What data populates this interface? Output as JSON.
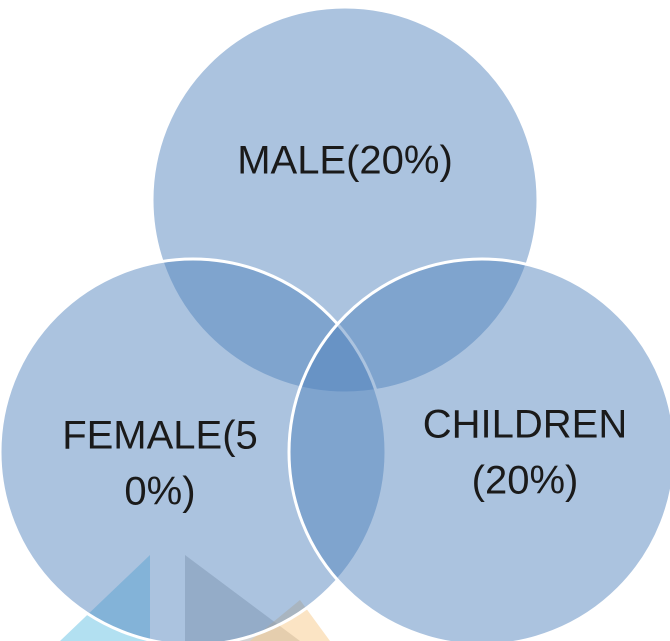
{
  "nodes": [
    {
      "label": [
        "MALE(20%)"
      ]
    },
    {
      "label": [
        "FEMALE(5",
        "0%)"
      ]
    },
    {
      "label": [
        "CHILDREN",
        "(20%)"
      ]
    }
  ]
}
